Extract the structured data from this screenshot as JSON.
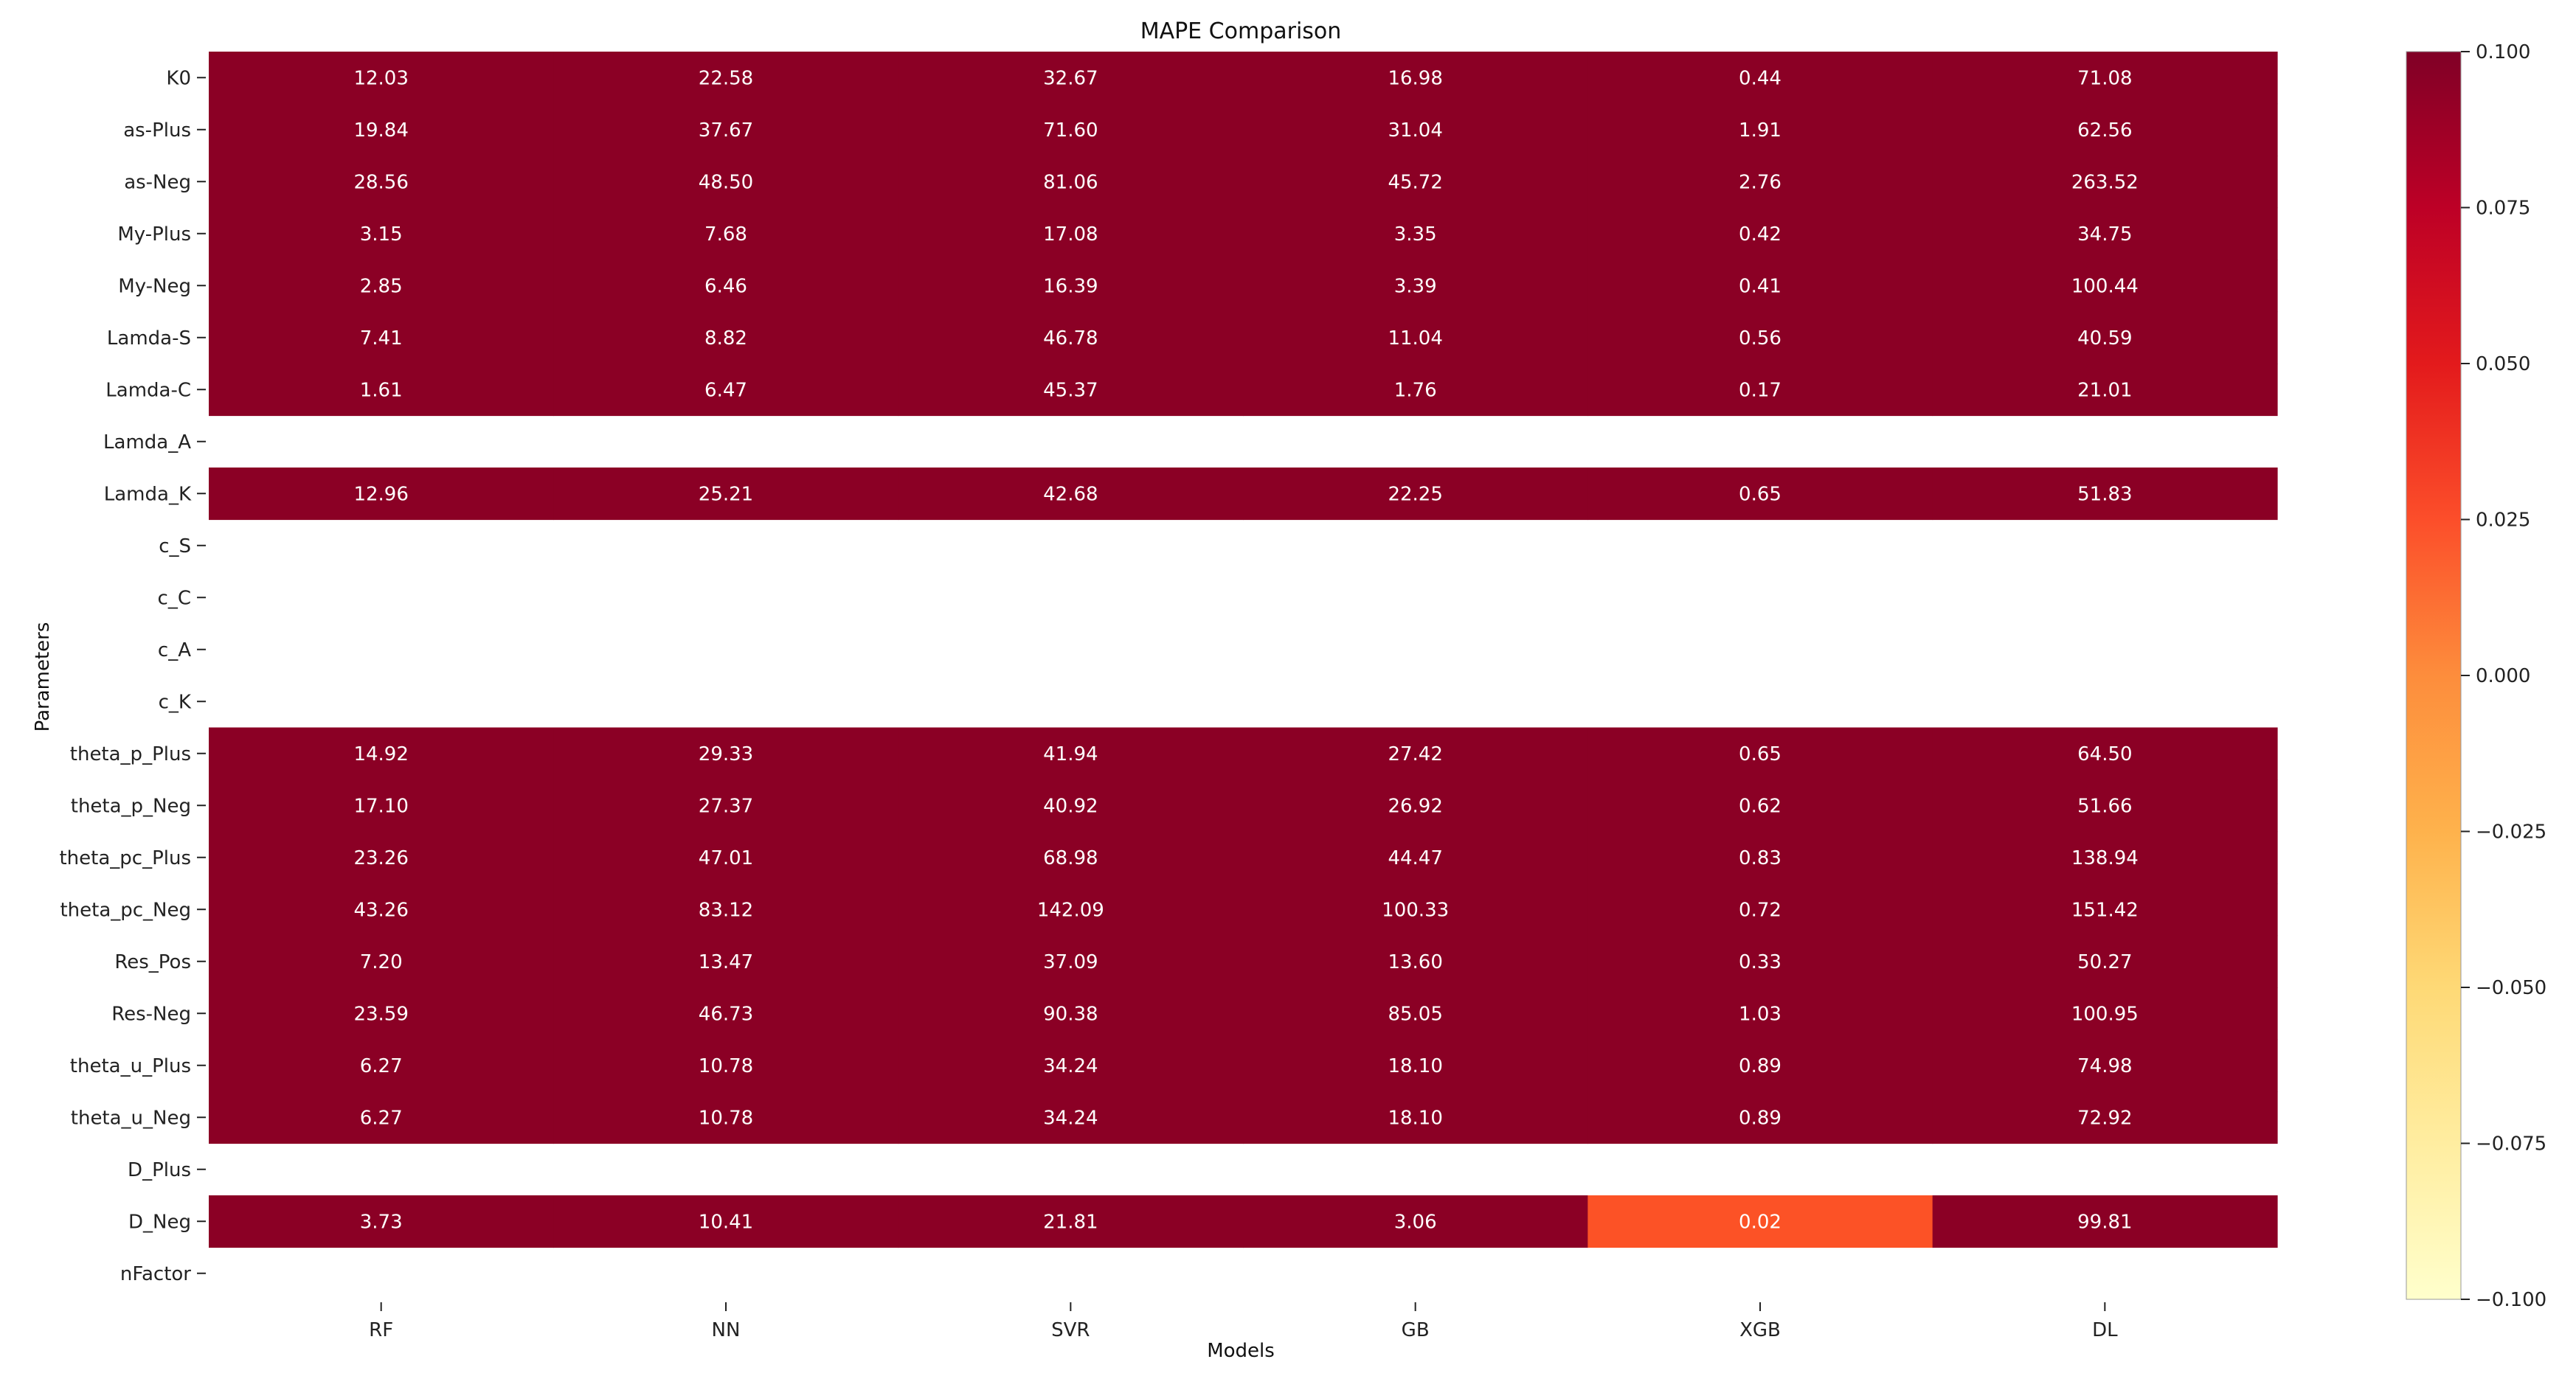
{
  "chart_data": {
    "type": "heatmap",
    "title": "MAPE Comparison",
    "xlabel": "Models",
    "ylabel": "Parameters",
    "columns": [
      "RF",
      "NN",
      "SVR",
      "GB",
      "XGB",
      "DL"
    ],
    "rows": [
      {
        "label": "K0",
        "values": [
          "12.03",
          "22.58",
          "32.67",
          "16.98",
          "0.44",
          "71.08"
        ]
      },
      {
        "label": "as-Plus",
        "values": [
          "19.84",
          "37.67",
          "71.60",
          "31.04",
          "1.91",
          "62.56"
        ]
      },
      {
        "label": "as-Neg",
        "values": [
          "28.56",
          "48.50",
          "81.06",
          "45.72",
          "2.76",
          "263.52"
        ]
      },
      {
        "label": "My-Plus",
        "values": [
          "3.15",
          "7.68",
          "17.08",
          "3.35",
          "0.42",
          "34.75"
        ]
      },
      {
        "label": "My-Neg",
        "values": [
          "2.85",
          "6.46",
          "16.39",
          "3.39",
          "0.41",
          "100.44"
        ]
      },
      {
        "label": "Lamda-S",
        "values": [
          "7.41",
          "8.82",
          "46.78",
          "11.04",
          "0.56",
          "40.59"
        ]
      },
      {
        "label": "Lamda-C",
        "values": [
          "1.61",
          "6.47",
          "45.37",
          "1.76",
          "0.17",
          "21.01"
        ]
      },
      {
        "label": "Lamda_A",
        "values": [
          null,
          null,
          null,
          null,
          null,
          null
        ]
      },
      {
        "label": "Lamda_K",
        "values": [
          "12.96",
          "25.21",
          "42.68",
          "22.25",
          "0.65",
          "51.83"
        ]
      },
      {
        "label": "c_S",
        "values": [
          null,
          null,
          null,
          null,
          null,
          null
        ]
      },
      {
        "label": "c_C",
        "values": [
          null,
          null,
          null,
          null,
          null,
          null
        ]
      },
      {
        "label": "c_A",
        "values": [
          null,
          null,
          null,
          null,
          null,
          null
        ]
      },
      {
        "label": "c_K",
        "values": [
          null,
          null,
          null,
          null,
          null,
          null
        ]
      },
      {
        "label": "theta_p_Plus",
        "values": [
          "14.92",
          "29.33",
          "41.94",
          "27.42",
          "0.65",
          "64.50"
        ]
      },
      {
        "label": "theta_p_Neg",
        "values": [
          "17.10",
          "27.37",
          "40.92",
          "26.92",
          "0.62",
          "51.66"
        ]
      },
      {
        "label": "theta_pc_Plus",
        "values": [
          "23.26",
          "47.01",
          "68.98",
          "44.47",
          "0.83",
          "138.94"
        ]
      },
      {
        "label": "theta_pc_Neg",
        "values": [
          "43.26",
          "83.12",
          "142.09",
          "100.33",
          "0.72",
          "151.42"
        ]
      },
      {
        "label": "Res_Pos",
        "values": [
          "7.20",
          "13.47",
          "37.09",
          "13.60",
          "0.33",
          "50.27"
        ]
      },
      {
        "label": "Res-Neg",
        "values": [
          "23.59",
          "46.73",
          "90.38",
          "85.05",
          "1.03",
          "100.95"
        ]
      },
      {
        "label": "theta_u_Plus",
        "values": [
          "6.27",
          "10.78",
          "34.24",
          "18.10",
          "0.89",
          "74.98"
        ]
      },
      {
        "label": "theta_u_Neg",
        "values": [
          "6.27",
          "10.78",
          "34.24",
          "18.10",
          "0.89",
          "72.92"
        ]
      },
      {
        "label": "D_Plus",
        "values": [
          null,
          null,
          null,
          null,
          null,
          null
        ]
      },
      {
        "label": "D_Neg",
        "values": [
          "3.73",
          "10.41",
          "21.81",
          "3.06",
          "0.02",
          "99.81"
        ]
      },
      {
        "label": "nFactor",
        "values": [
          null,
          null,
          null,
          null,
          null,
          null
        ]
      }
    ],
    "colorbar": {
      "range": [
        -0.1,
        0.1
      ],
      "ticks": [
        "0.100",
        "0.075",
        "0.050",
        "0.025",
        "0.000",
        "−0.025",
        "−0.050",
        "−0.075",
        "−0.100"
      ],
      "tick_values": [
        0.1,
        0.075,
        0.05,
        0.025,
        0.0,
        -0.025,
        -0.05,
        -0.075,
        -0.1
      ],
      "colormap": "YlOrRd",
      "stops": [
        "#ffffcc",
        "#ffeda0",
        "#fed976",
        "#feb24c",
        "#fd8d3c",
        "#fc4e2a",
        "#e31a1c",
        "#bd0026",
        "#800026"
      ]
    },
    "colors": {
      "saturated": "#8b0025",
      "xgb_d_neg": "#fc5226"
    }
  }
}
